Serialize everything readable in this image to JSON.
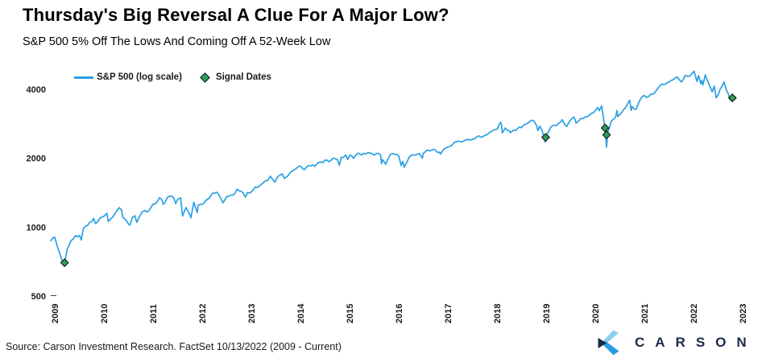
{
  "source_note": "Source: Carson Investment Research. FactSet 10/13/2022 (2009 - Current)",
  "brand": {
    "wordmark": "CARSON",
    "navy": "#1B2A4A",
    "light_blue": "#8FCCF3",
    "mid_blue": "#2E9BE0"
  },
  "chart_data": {
    "type": "line",
    "title": "Thursday's Big Reversal A Clue For A Major Low?",
    "subtitle": "S&P 500 5% Off The Lows And Coming Off A 52-Week Low",
    "grid": false,
    "legend_position": "top-left",
    "x_axis": {
      "ticks": [
        "2009",
        "2010",
        "2011",
        "2012",
        "2013",
        "2014",
        "2015",
        "2016",
        "2017",
        "2018",
        "2019",
        "2020",
        "2021",
        "2022",
        "2023"
      ],
      "label_rotation_deg": -90
    },
    "y_axis": {
      "scale": "log",
      "ticks": [
        "4000",
        "2000",
        "1000",
        "500"
      ],
      "range": [
        450,
        5200
      ]
    },
    "series": [
      {
        "name": "S&P 500 (log scale)",
        "type": "line",
        "color": "#2AA0E3",
        "points": [
          [
            2008.92,
            872
          ],
          [
            2009.0,
            903
          ],
          [
            2009.05,
            826
          ],
          [
            2009.1,
            770
          ],
          [
            2009.13,
            735
          ],
          [
            2009.19,
            677
          ],
          [
            2009.25,
            798
          ],
          [
            2009.33,
            873
          ],
          [
            2009.42,
            919
          ],
          [
            2009.5,
            921
          ],
          [
            2009.54,
            879
          ],
          [
            2009.58,
            987
          ],
          [
            2009.67,
            1021
          ],
          [
            2009.75,
            1057
          ],
          [
            2009.79,
            1093
          ],
          [
            2009.83,
            1036
          ],
          [
            2009.92,
            1096
          ],
          [
            2010.0,
            1115
          ],
          [
            2010.06,
            1150
          ],
          [
            2010.09,
            1057
          ],
          [
            2010.17,
            1104
          ],
          [
            2010.25,
            1169
          ],
          [
            2010.31,
            1217
          ],
          [
            2010.36,
            1187
          ],
          [
            2010.38,
            1110
          ],
          [
            2010.42,
            1089
          ],
          [
            2010.5,
            1031
          ],
          [
            2010.53,
            1023
          ],
          [
            2010.58,
            1102
          ],
          [
            2010.63,
            1122
          ],
          [
            2010.67,
            1049
          ],
          [
            2010.75,
            1141
          ],
          [
            2010.83,
            1183
          ],
          [
            2010.92,
            1181
          ],
          [
            2011.0,
            1258
          ],
          [
            2011.08,
            1286
          ],
          [
            2011.13,
            1343
          ],
          [
            2011.17,
            1327
          ],
          [
            2011.21,
            1257
          ],
          [
            2011.33,
            1364
          ],
          [
            2011.42,
            1345
          ],
          [
            2011.46,
            1268
          ],
          [
            2011.5,
            1321
          ],
          [
            2011.56,
            1345
          ],
          [
            2011.6,
            1119
          ],
          [
            2011.67,
            1219
          ],
          [
            2011.72,
            1162
          ],
          [
            2011.75,
            1131
          ],
          [
            2011.77,
            1099
          ],
          [
            2011.83,
            1285
          ],
          [
            2011.9,
            1159
          ],
          [
            2011.92,
            1247
          ],
          [
            2012.0,
            1258
          ],
          [
            2012.08,
            1312
          ],
          [
            2012.17,
            1366
          ],
          [
            2012.25,
            1408
          ],
          [
            2012.29,
            1422
          ],
          [
            2012.33,
            1398
          ],
          [
            2012.4,
            1310
          ],
          [
            2012.42,
            1278
          ],
          [
            2012.5,
            1362
          ],
          [
            2012.58,
            1379
          ],
          [
            2012.67,
            1407
          ],
          [
            2012.71,
            1466
          ],
          [
            2012.75,
            1441
          ],
          [
            2012.83,
            1412
          ],
          [
            2012.88,
            1353
          ],
          [
            2012.92,
            1416
          ],
          [
            2013.0,
            1426
          ],
          [
            2013.08,
            1498
          ],
          [
            2013.17,
            1515
          ],
          [
            2013.25,
            1569
          ],
          [
            2013.33,
            1598
          ],
          [
            2013.39,
            1669
          ],
          [
            2013.42,
            1631
          ],
          [
            2013.48,
            1573
          ],
          [
            2013.5,
            1606
          ],
          [
            2013.58,
            1686
          ],
          [
            2013.63,
            1709
          ],
          [
            2013.67,
            1633
          ],
          [
            2013.75,
            1682
          ],
          [
            2013.83,
            1757
          ],
          [
            2013.92,
            1806
          ],
          [
            2014.0,
            1848
          ],
          [
            2014.08,
            1783
          ],
          [
            2014.17,
            1859
          ],
          [
            2014.25,
            1872
          ],
          [
            2014.29,
            1841
          ],
          [
            2014.33,
            1884
          ],
          [
            2014.42,
            1924
          ],
          [
            2014.5,
            1960
          ],
          [
            2014.58,
            1931
          ],
          [
            2014.67,
            2003
          ],
          [
            2014.75,
            1972
          ],
          [
            2014.79,
            1862
          ],
          [
            2014.83,
            2018
          ],
          [
            2014.92,
            2068
          ],
          [
            2014.96,
            1973
          ],
          [
            2015.0,
            2059
          ],
          [
            2015.08,
            1995
          ],
          [
            2015.17,
            2105
          ],
          [
            2015.25,
            2068
          ],
          [
            2015.33,
            2086
          ],
          [
            2015.42,
            2107
          ],
          [
            2015.5,
            2063
          ],
          [
            2015.58,
            2104
          ],
          [
            2015.63,
            2068
          ],
          [
            2015.65,
            1893
          ],
          [
            2015.67,
            1972
          ],
          [
            2015.74,
            1882
          ],
          [
            2015.75,
            1920
          ],
          [
            2015.83,
            2079
          ],
          [
            2015.92,
            2080
          ],
          [
            2016.0,
            2044
          ],
          [
            2016.05,
            1859
          ],
          [
            2016.08,
            1940
          ],
          [
            2016.11,
            1829
          ],
          [
            2016.17,
            1932
          ],
          [
            2016.25,
            2060
          ],
          [
            2016.33,
            2065
          ],
          [
            2016.42,
            2097
          ],
          [
            2016.48,
            2001
          ],
          [
            2016.5,
            2099
          ],
          [
            2016.58,
            2174
          ],
          [
            2016.67,
            2171
          ],
          [
            2016.75,
            2168
          ],
          [
            2016.83,
            2126
          ],
          [
            2016.85,
            2085
          ],
          [
            2016.92,
            2199
          ],
          [
            2017.0,
            2239
          ],
          [
            2017.08,
            2279
          ],
          [
            2017.17,
            2364
          ],
          [
            2017.25,
            2363
          ],
          [
            2017.33,
            2384
          ],
          [
            2017.42,
            2412
          ],
          [
            2017.5,
            2423
          ],
          [
            2017.58,
            2470
          ],
          [
            2017.67,
            2472
          ],
          [
            2017.75,
            2519
          ],
          [
            2017.83,
            2575
          ],
          [
            2017.92,
            2648
          ],
          [
            2018.0,
            2674
          ],
          [
            2018.07,
            2873
          ],
          [
            2018.09,
            2824
          ],
          [
            2018.11,
            2581
          ],
          [
            2018.17,
            2714
          ],
          [
            2018.25,
            2641
          ],
          [
            2018.27,
            2582
          ],
          [
            2018.33,
            2648
          ],
          [
            2018.42,
            2705
          ],
          [
            2018.5,
            2718
          ],
          [
            2018.58,
            2816
          ],
          [
            2018.67,
            2902
          ],
          [
            2018.72,
            2931
          ],
          [
            2018.75,
            2914
          ],
          [
            2018.81,
            2768
          ],
          [
            2018.83,
            2641
          ],
          [
            2018.87,
            2760
          ],
          [
            2018.92,
            2633
          ],
          [
            2018.98,
            2351
          ],
          [
            2019.0,
            2507
          ],
          [
            2019.08,
            2704
          ],
          [
            2019.17,
            2785
          ],
          [
            2019.25,
            2834
          ],
          [
            2019.33,
            2946
          ],
          [
            2019.42,
            2752
          ],
          [
            2019.5,
            2942
          ],
          [
            2019.56,
            3026
          ],
          [
            2019.58,
            2980
          ],
          [
            2019.61,
            2845
          ],
          [
            2019.67,
            2926
          ],
          [
            2019.75,
            2977
          ],
          [
            2019.83,
            3038
          ],
          [
            2019.92,
            3141
          ],
          [
            2020.0,
            3231
          ],
          [
            2020.05,
            3330
          ],
          [
            2020.08,
            3226
          ],
          [
            2020.13,
            3386
          ],
          [
            2020.17,
            2954
          ],
          [
            2020.2,
            2711
          ],
          [
            2020.23,
            2237
          ],
          [
            2020.25,
            2585
          ],
          [
            2020.33,
            2912
          ],
          [
            2020.42,
            3044
          ],
          [
            2020.44,
            3232
          ],
          [
            2020.46,
            3041
          ],
          [
            2020.5,
            3100
          ],
          [
            2020.58,
            3271
          ],
          [
            2020.67,
            3500
          ],
          [
            2020.7,
            3581
          ],
          [
            2020.73,
            3237
          ],
          [
            2020.75,
            3363
          ],
          [
            2020.83,
            3270
          ],
          [
            2020.92,
            3622
          ],
          [
            2021.0,
            3756
          ],
          [
            2021.08,
            3714
          ],
          [
            2021.17,
            3811
          ],
          [
            2021.25,
            3973
          ],
          [
            2021.33,
            4181
          ],
          [
            2021.42,
            4204
          ],
          [
            2021.5,
            4298
          ],
          [
            2021.58,
            4395
          ],
          [
            2021.67,
            4523
          ],
          [
            2021.75,
            4308
          ],
          [
            2021.83,
            4605
          ],
          [
            2021.92,
            4567
          ],
          [
            2022.0,
            4766
          ],
          [
            2022.01,
            4797
          ],
          [
            2022.07,
            4327
          ],
          [
            2022.1,
            4589
          ],
          [
            2022.15,
            4225
          ],
          [
            2022.17,
            4374
          ],
          [
            2022.19,
            4171
          ],
          [
            2022.24,
            4632
          ],
          [
            2022.25,
            4530
          ],
          [
            2022.33,
            4132
          ],
          [
            2022.38,
            3901
          ],
          [
            2022.42,
            4132
          ],
          [
            2022.46,
            3667
          ],
          [
            2022.5,
            3785
          ],
          [
            2022.58,
            4130
          ],
          [
            2022.62,
            4305
          ],
          [
            2022.67,
            3955
          ],
          [
            2022.75,
            3586
          ],
          [
            2022.78,
            3577
          ],
          [
            2022.79,
            3669
          ]
        ]
      },
      {
        "name": "Signal Dates",
        "type": "scatter",
        "marker": "diamond",
        "color": "#2BA05C",
        "marker_outline": "#1a1a1a",
        "points": [
          [
            2009.2,
            700
          ],
          [
            2018.99,
            2468
          ],
          [
            2020.2,
            2711
          ],
          [
            2020.23,
            2530
          ],
          [
            2022.79,
            3669
          ]
        ]
      }
    ]
  }
}
